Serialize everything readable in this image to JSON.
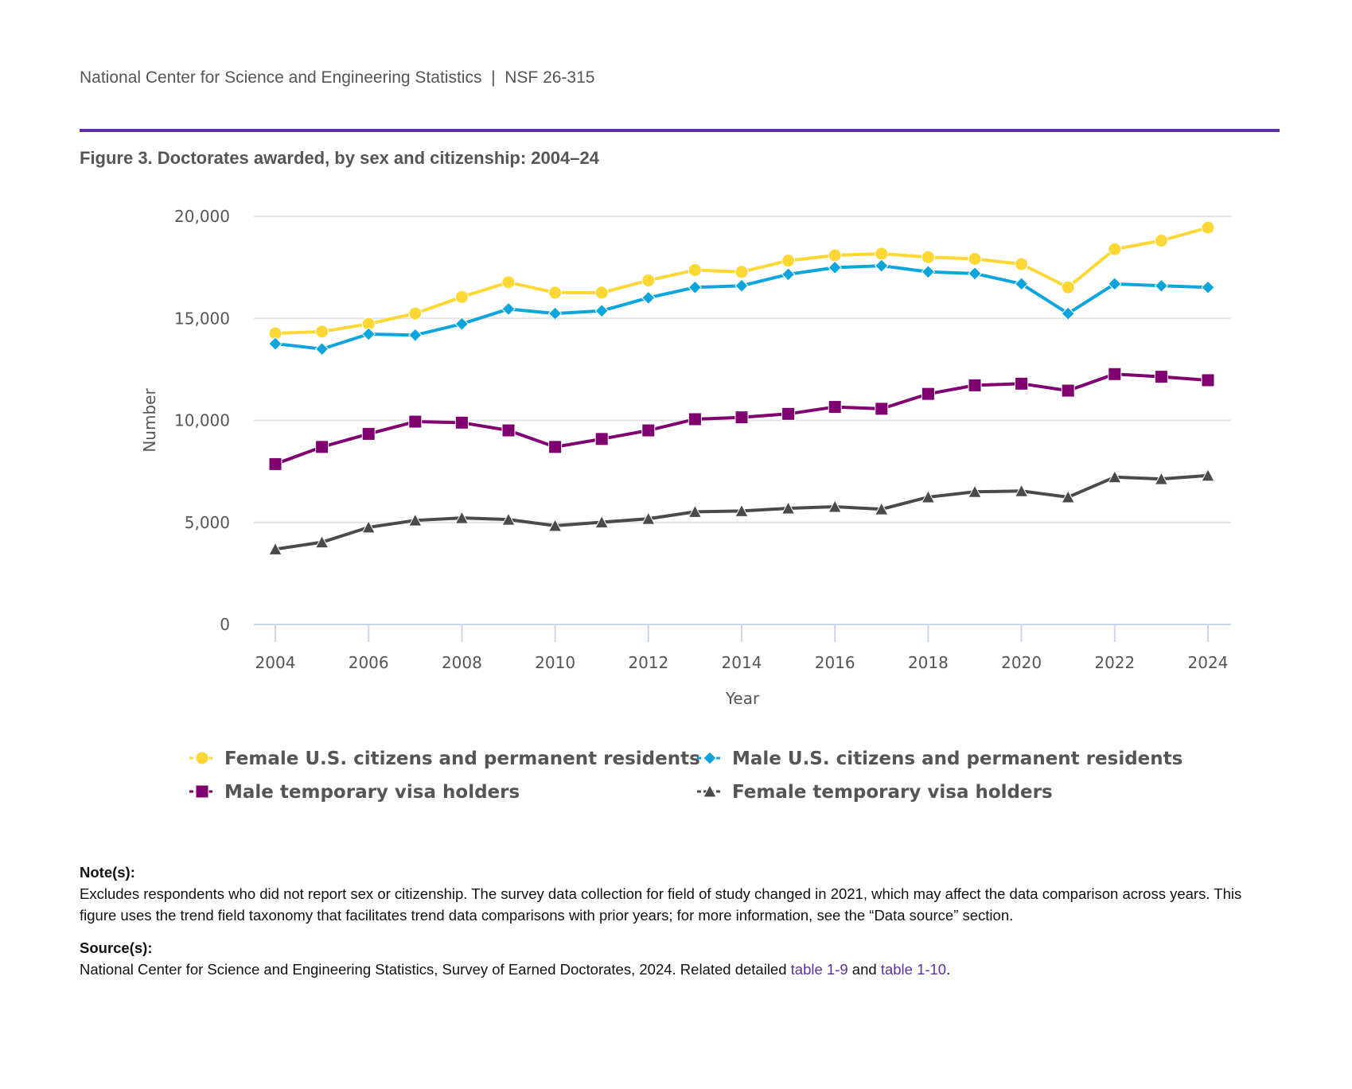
{
  "header": {
    "text": "National Center for Science and Engineering Statistics  |  NSF 26-315"
  },
  "figure_title": "Figure 3. Doctorates awarded, by sex and citizenship: 2004–24",
  "chart_data": {
    "type": "line",
    "xlabel": "Year",
    "ylabel": "Number",
    "ylim": [
      0,
      20000
    ],
    "yticks": [
      0,
      5000,
      10000,
      15000,
      20000
    ],
    "ytick_labels": [
      "0",
      "5,000",
      "10,000",
      "15,000",
      "20,000"
    ],
    "xticks": [
      2004,
      2006,
      2008,
      2010,
      2012,
      2014,
      2016,
      2018,
      2020,
      2022,
      2024
    ],
    "x": [
      2004,
      2005,
      2006,
      2007,
      2008,
      2009,
      2010,
      2011,
      2012,
      2013,
      2014,
      2015,
      2016,
      2017,
      2018,
      2019,
      2020,
      2021,
      2022,
      2023,
      2024
    ],
    "grid": true,
    "legend_position": "bottom",
    "series": [
      {
        "name": "Female U.S. citizens and permanent residents",
        "color": "#fdd835",
        "marker": "circle",
        "values": [
          14270,
          14350,
          14730,
          15240,
          16050,
          16770,
          16260,
          16260,
          16860,
          17370,
          17280,
          17830,
          18090,
          18170,
          18000,
          17920,
          17660,
          16520,
          18390,
          18810,
          19450
        ]
      },
      {
        "name": "Male U.S. citizens and permanent residents",
        "color": "#0ea5dc",
        "marker": "diamond",
        "values": [
          13760,
          13500,
          14230,
          14180,
          14730,
          15460,
          15240,
          15370,
          16010,
          16520,
          16600,
          17160,
          17490,
          17580,
          17280,
          17200,
          16690,
          15240,
          16690,
          16600,
          16520
        ]
      },
      {
        "name": "Male temporary visa holders",
        "color": "#800070",
        "marker": "square",
        "values": [
          7860,
          8700,
          9340,
          9940,
          9890,
          9510,
          8700,
          9090,
          9510,
          10060,
          10150,
          10320,
          10660,
          10570,
          11300,
          11720,
          11800,
          11460,
          12270,
          12140,
          11970
        ]
      },
      {
        "name": "Female temporary visa holders",
        "color": "#4a4a4a",
        "marker": "triangle",
        "values": [
          3690,
          4030,
          4760,
          5100,
          5220,
          5140,
          4840,
          5010,
          5180,
          5520,
          5560,
          5690,
          5770,
          5650,
          6240,
          6500,
          6540,
          6240,
          7220,
          7130,
          7300
        ]
      }
    ]
  },
  "notes": {
    "notes_label": "Note(s):",
    "notes_text": "Excludes respondents who did not report sex or citizenship. The survey data collection for field of study changed in 2021, which may affect the data comparison across years. This figure uses the trend field taxonomy that facilitates trend data comparisons with prior years; for more information, see the “Data source” section.",
    "source_label": "Source(s):",
    "source_text": "National Center for Science and Engineering Statistics, Survey of Earned Doctorates, 2024. Related detailed ",
    "link1": "table 1-9",
    "and": " and ",
    "link2": "table 1-10",
    "end": "."
  }
}
